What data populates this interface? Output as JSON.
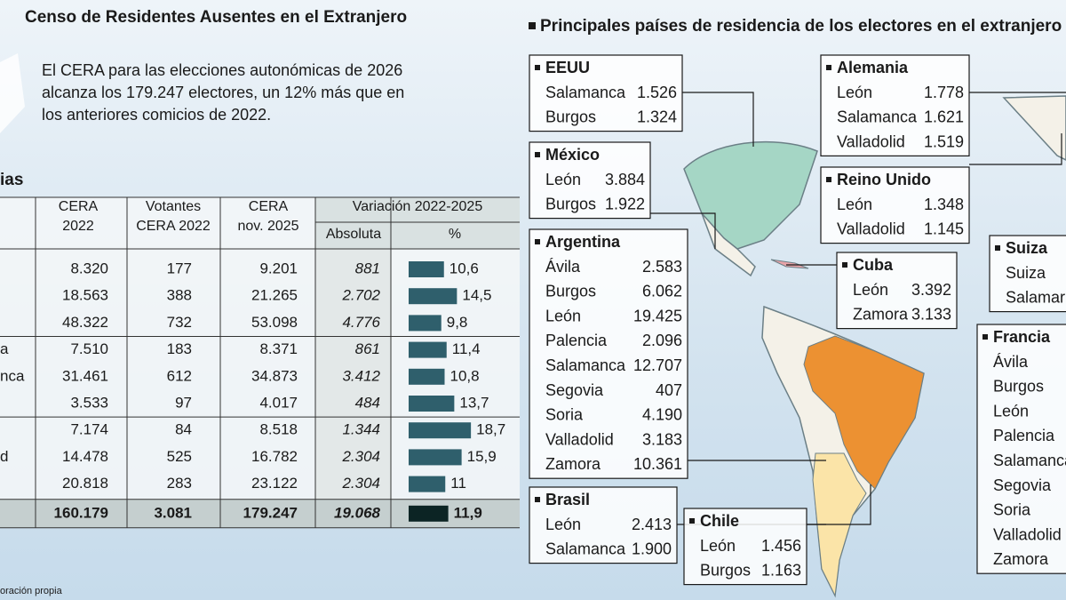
{
  "left": {
    "title": "Censo de Residentes Ausentes en el Extranjero",
    "intro": [
      "El CERA para las elecciones autonómicas de 2026",
      "alcanza los 179.247 electores, un 12% más que en",
      "los anteriores comicios de 2022."
    ],
    "table": {
      "corner": "ias",
      "headers": [
        [
          "CERA",
          "2022"
        ],
        [
          "Votantes",
          "CERA 2022"
        ],
        [
          "CERA",
          "nov. 2025"
        ]
      ],
      "variation": "Variación 2022-2025",
      "subheaders": [
        "Absoluta",
        "%"
      ],
      "rows": [
        {
          "cells": [
            "8.320",
            "177",
            "9.201",
            "881"
          ],
          "pct": {
            "value": 10.6,
            "label": "10,6"
          }
        },
        {
          "cells": [
            "18.563",
            "388",
            "21.265",
            "2.702"
          ],
          "pct": {
            "value": 14.5,
            "label": "14,5"
          }
        },
        {
          "cells": [
            "48.322",
            "732",
            "53.098",
            "4.776"
          ],
          "pct": {
            "value": 9.8,
            "label": "9,8"
          }
        },
        {
          "label": "a",
          "cells": [
            "7.510",
            "183",
            "8.371",
            "861"
          ],
          "pct": {
            "value": 11.4,
            "label": "11,4"
          }
        },
        {
          "label": "nca",
          "cells": [
            "31.461",
            "612",
            "34.873",
            "3.412"
          ],
          "pct": {
            "value": 10.8,
            "label": "10,8"
          }
        },
        {
          "cells": [
            "3.533",
            "97",
            "4.017",
            "484"
          ],
          "pct": {
            "value": 13.7,
            "label": "13,7"
          }
        },
        {
          "cells": [
            "7.174",
            "84",
            "8.518",
            "1.344"
          ],
          "pct": {
            "value": 18.7,
            "label": "18,7"
          }
        },
        {
          "label": "d",
          "cells": [
            "14.478",
            "525",
            "16.782",
            "2.304"
          ],
          "pct": {
            "value": 15.9,
            "label": "15,9"
          }
        },
        {
          "cells": [
            "20.818",
            "283",
            "23.122",
            "2.304"
          ],
          "pct": {
            "value": 11,
            "label": "11"
          }
        }
      ],
      "total": {
        "cells": [
          "160.179",
          "3.081",
          "179.247",
          "19.068"
        ],
        "pct": {
          "value": 11.9,
          "label": "11,9"
        }
      }
    },
    "source": "oración propia"
  },
  "map": {
    "title": "Principales países de residencia de los electores en el extranjero",
    "boxes": [
      {
        "country": "EEUU",
        "rows": [
          [
            "Salamanca",
            "1.526"
          ],
          [
            "Burgos",
            "1.324"
          ]
        ]
      },
      {
        "country": "Alemania",
        "rows": [
          [
            "León",
            "1.778"
          ],
          [
            "Salamanca",
            "1.621"
          ],
          [
            "Valladolid",
            "1.519"
          ]
        ]
      },
      {
        "country": "México",
        "rows": [
          [
            "León",
            "3.884"
          ],
          [
            "Burgos",
            "1.922"
          ]
        ]
      },
      {
        "country": "Reino Unido",
        "rows": [
          [
            "León",
            "1.348"
          ],
          [
            "Valladolid",
            "1.145"
          ]
        ]
      },
      {
        "country": "Argentina",
        "rows": [
          [
            "Ávila",
            "2.583"
          ],
          [
            "Burgos",
            "6.062"
          ],
          [
            "León",
            "19.425"
          ],
          [
            "Palencia",
            "2.096"
          ],
          [
            "Salamanca",
            "12.707"
          ],
          [
            "Segovia",
            "407"
          ],
          [
            "Soria",
            "4.190"
          ],
          [
            "Valladolid",
            "3.183"
          ],
          [
            "Zamora",
            "10.361"
          ]
        ]
      },
      {
        "country": "Cuba",
        "rows": [
          [
            "León",
            "3.392"
          ],
          [
            "Zamora",
            "3.133"
          ]
        ]
      },
      {
        "country": "Suiza",
        "rows": [
          [
            "Suiza"
          ],
          [
            "Salamar"
          ]
        ]
      },
      {
        "country": "Francia",
        "rows": [
          [
            "Ávila"
          ],
          [
            "Burgos"
          ],
          [
            "León"
          ],
          [
            "Palencia"
          ],
          [
            "Salamanca"
          ],
          [
            "Segovia"
          ],
          [
            "Soria"
          ],
          [
            "Valladolid"
          ],
          [
            "Zamora"
          ]
        ]
      },
      {
        "country": "Brasil",
        "rows": [
          [
            "León",
            "2.413"
          ],
          [
            "Salamanca",
            "1.900"
          ]
        ]
      },
      {
        "country": "Chile",
        "rows": [
          [
            "León",
            "1.456"
          ],
          [
            "Burgos",
            "1.163"
          ]
        ]
      }
    ]
  }
}
